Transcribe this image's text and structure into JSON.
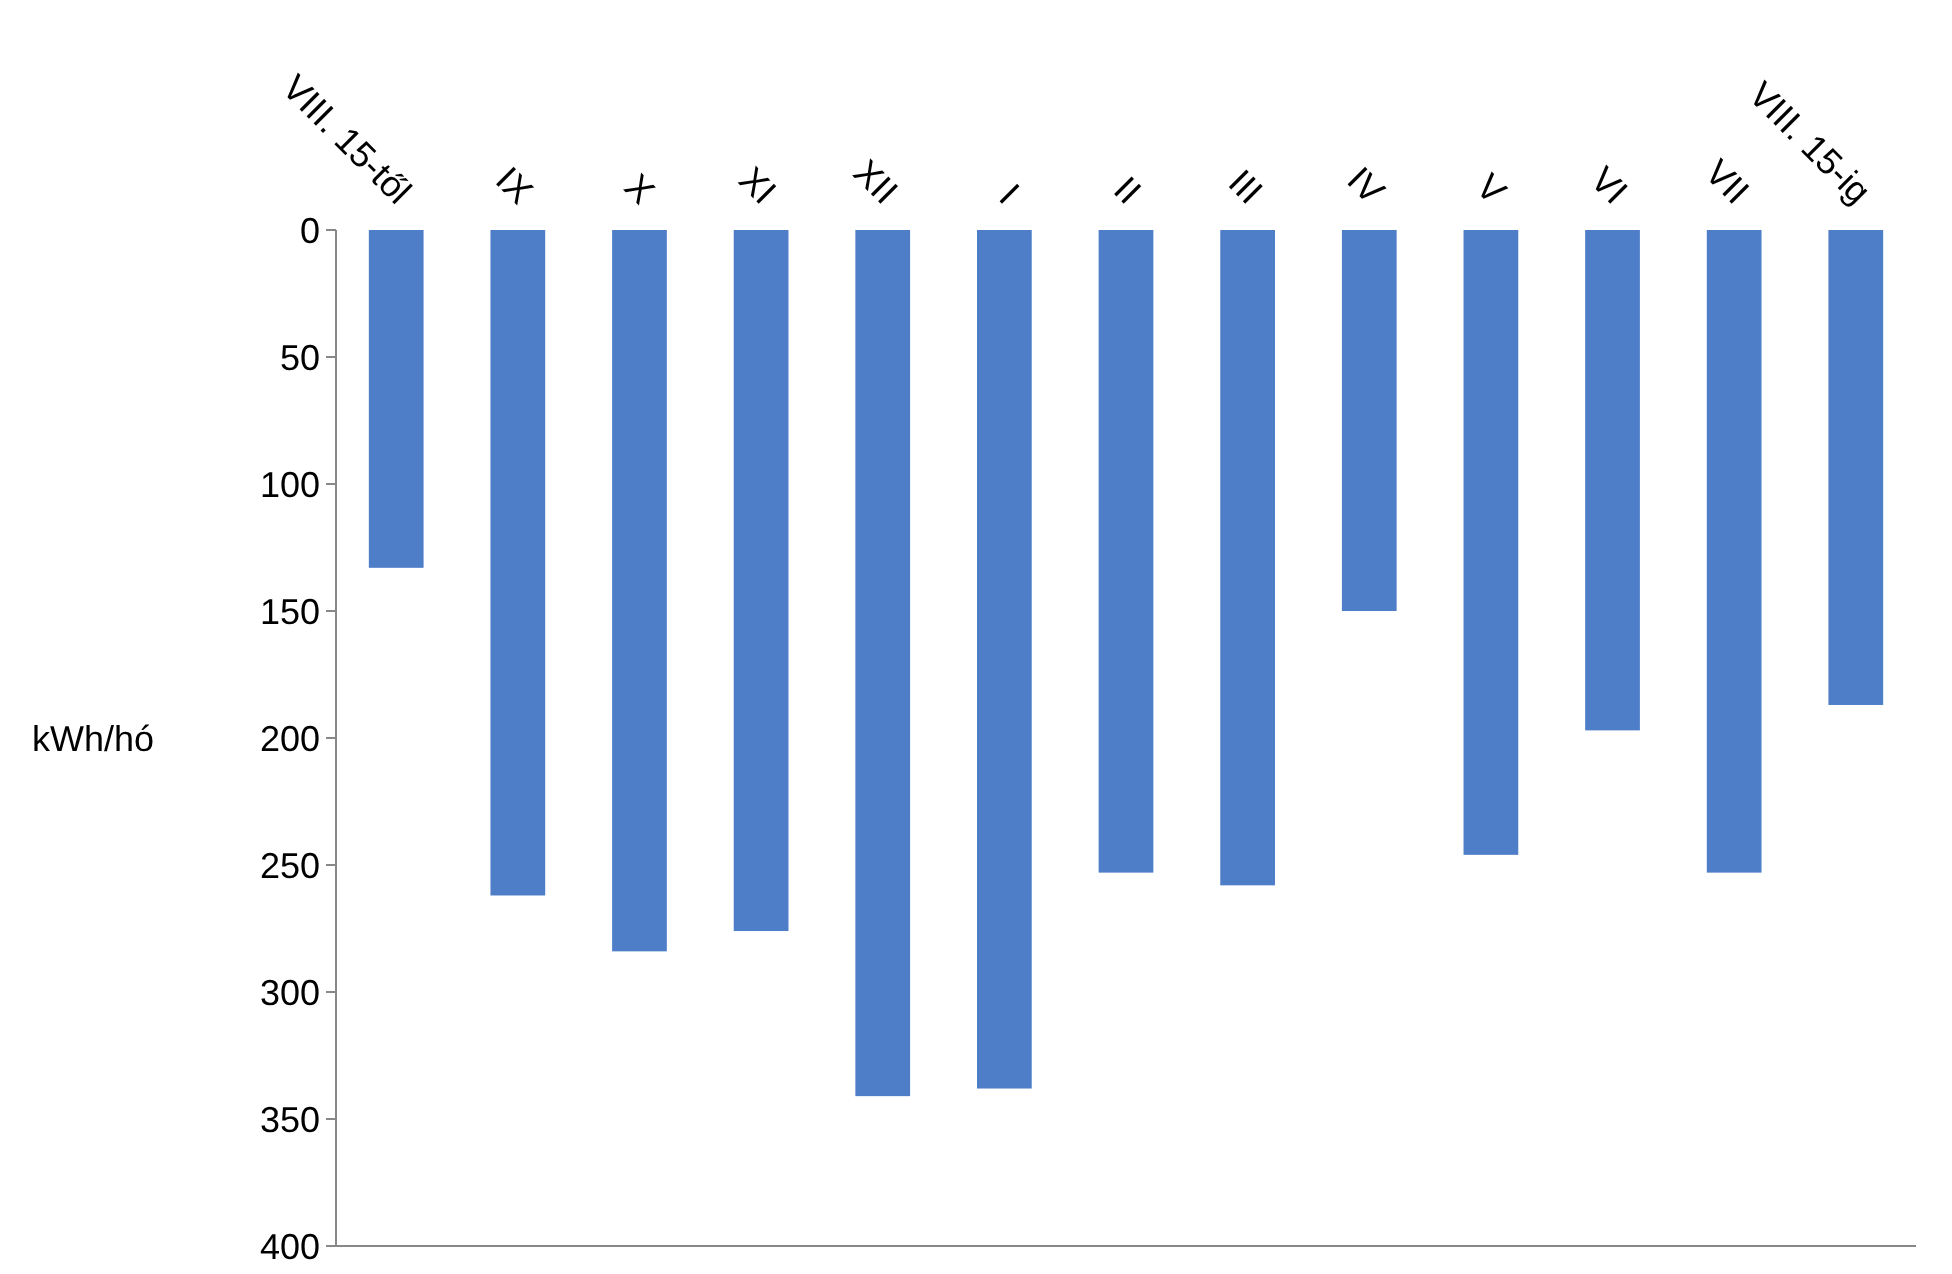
{
  "chart_data": {
    "type": "bar",
    "ylabel": "kWh/hó",
    "categories": [
      "VIII. 15-től",
      "IX",
      "X",
      "XI",
      "XII",
      "I",
      "II",
      "III",
      "IV",
      "V",
      "VI",
      "VII",
      "VIII. 15-ig"
    ],
    "values": [
      133,
      262,
      284,
      276,
      341,
      338,
      253,
      258,
      150,
      246,
      197,
      253,
      187
    ],
    "color": "#4f7ec8",
    "ylim": [
      400,
      0
    ],
    "yticks": [
      0,
      50,
      100,
      150,
      200,
      250,
      300,
      350,
      400
    ],
    "grid": false
  }
}
